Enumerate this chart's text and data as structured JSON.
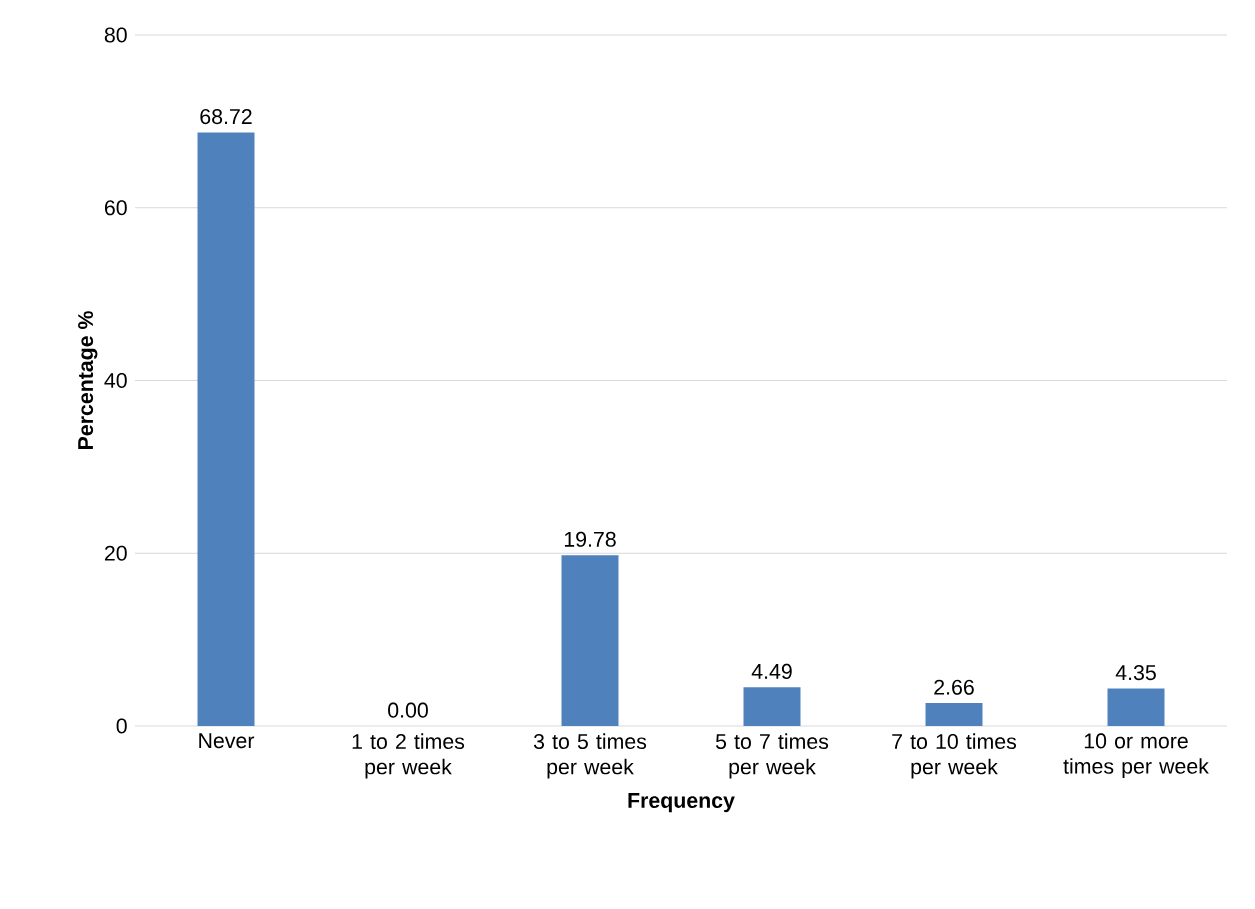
{
  "chart_data": {
    "type": "bar",
    "xlabel": "Frequency",
    "ylabel": "Percentage %",
    "categories": [
      "Never",
      "1 to 2 times per week",
      "3 to 5 times per week",
      "5 to 7 times per week",
      "7 to 10 times per week",
      "10 or more times per week"
    ],
    "values": [
      68.72,
      0.0,
      19.78,
      4.49,
      2.66,
      4.35
    ],
    "value_labels": [
      "68.72",
      "0.00",
      "19.78",
      "4.49",
      "2.66",
      "4.35"
    ],
    "color": "#4f81bd",
    "ylim": [
      0,
      80
    ],
    "yticks": [
      0,
      20,
      40,
      60,
      80
    ],
    "grid": "y"
  }
}
